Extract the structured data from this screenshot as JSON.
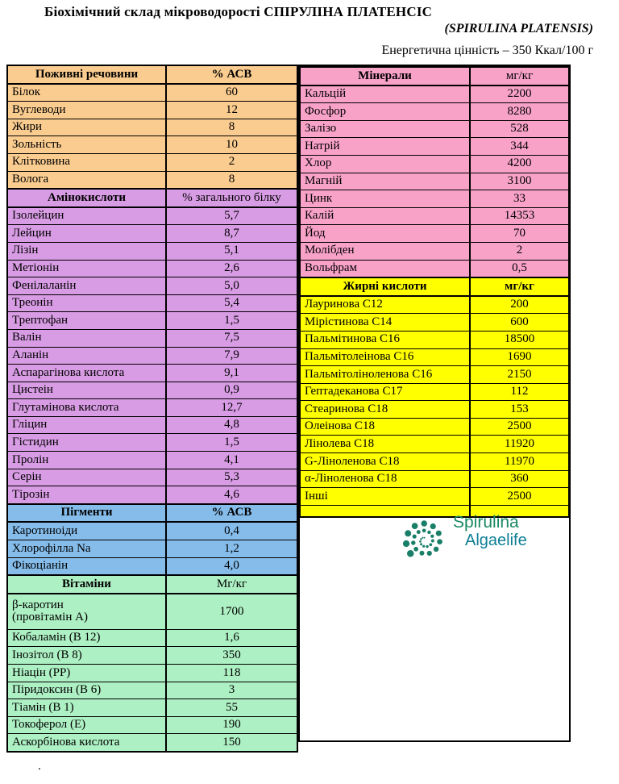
{
  "header": {
    "title": "Біохімічний склад мікроводорості СПІРУЛІНА ПЛАТЕНСІС",
    "subtitle": "(SPIRULINA PLATENSIS)",
    "energy": "Енергетична цінність – 350 Ккал/100 г"
  },
  "left_table": {
    "sections": [
      {
        "header": "Поживні речовини",
        "unit": "% АСВ",
        "unit_bold": true,
        "color": "#FACC90",
        "rows": [
          [
            "Білок",
            "60"
          ],
          [
            "Вуглеводи",
            "12"
          ],
          [
            "Жири",
            "8"
          ],
          [
            "Зольність",
            "10"
          ],
          [
            "Клітковина",
            "2"
          ],
          [
            "Волога",
            "8"
          ]
        ]
      },
      {
        "header": "Амінокислоти",
        "unit": "% загального білку",
        "unit_bold": false,
        "color": "#D89CE4",
        "rows": [
          [
            "Ізолейцин",
            "5,7"
          ],
          [
            "Лейцин",
            "8,7"
          ],
          [
            "Лізін",
            "5,1"
          ],
          [
            "Метіонін",
            "2,6"
          ],
          [
            "Фенілаланін",
            "5,0"
          ],
          [
            "Треонін",
            "5,4"
          ],
          [
            "Трептофан",
            "1,5"
          ],
          [
            "Валін",
            "7,5"
          ],
          [
            "Аланін",
            "7,9"
          ],
          [
            "Аспарагінова кислота",
            "9,1"
          ],
          [
            "Цистеін",
            "0,9"
          ],
          [
            "Глутамінова кислота",
            "12,7"
          ],
          [
            "Гліцин",
            "4,8"
          ],
          [
            "Гістидин",
            "1,5"
          ],
          [
            "Пролін",
            "4,1"
          ],
          [
            "Серін",
            "5,3"
          ],
          [
            "Тірозін",
            "4,6"
          ]
        ]
      },
      {
        "header": "Пігменти",
        "unit": "% АСВ",
        "unit_bold": true,
        "color": "#85BCEA",
        "rows": [
          [
            "Каротиноіди",
            "0,4"
          ],
          [
            "Хлорофілла Na",
            "1,2"
          ],
          [
            "Фікоціанін",
            "4,0"
          ]
        ]
      },
      {
        "header": "Вітаміни",
        "unit": "Мг/кг",
        "unit_bold": false,
        "color": "#ADF0C3",
        "rows": [
          [
            "β-каротин\n(провітамін А)",
            "1700",
            "tall"
          ],
          [
            "Кобаламін (В 12)",
            "1,6"
          ],
          [
            "Інозітол (В 8)",
            "350"
          ],
          [
            "Ніацін (РР)",
            "118"
          ],
          [
            "Піридоксин (В 6)",
            "3"
          ],
          [
            "Тіамін (В 1)",
            "55"
          ],
          [
            "Токоферол (Е)",
            "190"
          ],
          [
            "Аскорбінова кислота",
            "150"
          ]
        ]
      }
    ]
  },
  "right_table": {
    "sections": [
      {
        "header": "Мінерали",
        "unit": "мг/кг",
        "unit_bold": false,
        "color": "#F8A2C8",
        "rows": [
          [
            "Кальцій",
            "2200"
          ],
          [
            "Фосфор",
            "8280"
          ],
          [
            "Залізо",
            "528"
          ],
          [
            "Натрій",
            "344"
          ],
          [
            "Хлор",
            "4200"
          ],
          [
            "Магній",
            "3100"
          ],
          [
            "Цинк",
            "33"
          ],
          [
            "Калій",
            "14353"
          ],
          [
            "Йод",
            "70"
          ],
          [
            "Молібден",
            "2"
          ],
          [
            "Вольфрам",
            "0,5"
          ]
        ]
      },
      {
        "header": "Жирні кислоти",
        "unit": "мг/кг",
        "unit_bold": true,
        "color": "#FFFF00",
        "rows": [
          [
            "Лауринова С12",
            "200"
          ],
          [
            "Мірістинова С14",
            "600"
          ],
          [
            "Пальмітинова С16",
            "18500"
          ],
          [
            "Пальмітолеінова С16",
            "1690"
          ],
          [
            "Пальмітоліноленова С16",
            "2150"
          ],
          [
            "Гептадеканова С17",
            "112"
          ],
          [
            "Стеаринова С18",
            "153"
          ],
          [
            "Олеінова С18",
            "2500"
          ],
          [
            "Лінолева С18",
            "11920"
          ],
          [
            "G-Ліноленова С18",
            "11970"
          ],
          [
            "α-Ліноленова С18",
            "360"
          ],
          [
            "Інші",
            "2500"
          ],
          [
            "",
            "",
            "short"
          ]
        ]
      }
    ]
  },
  "logo": {
    "line1": "Spirulina",
    "line2": "Algaelife",
    "color1": "#1a8a62",
    "color2": "#0e7e95",
    "spiral_color": "#1a7f68"
  },
  "footer": {
    "dot": "."
  }
}
